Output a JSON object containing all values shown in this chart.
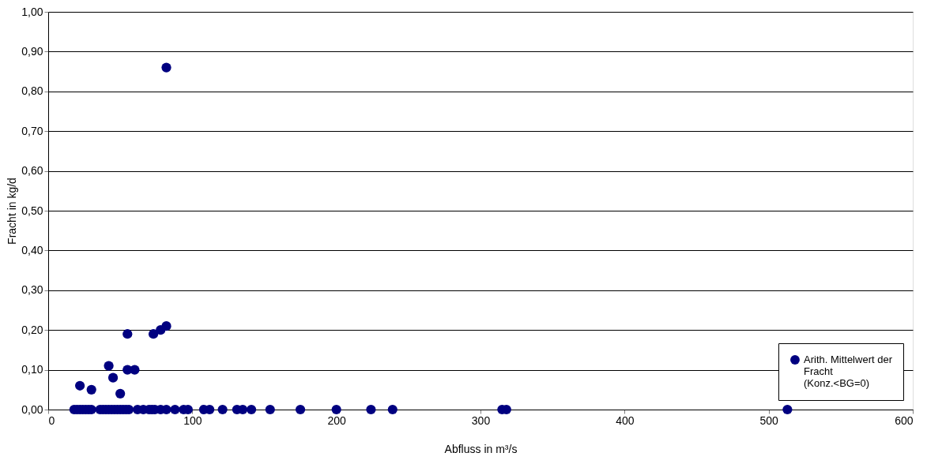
{
  "chart_data": {
    "type": "scatter",
    "xlabel": "Abfluss in m³/s",
    "ylabel": "Fracht in kg/d",
    "series": [
      {
        "name": "Arith. Mittelwert der\nFracht\n(Konz.<BG=0)",
        "color": "#000080",
        "x": [
          82,
          22,
          30,
          42,
          45,
          50,
          55,
          55,
          60,
          73,
          78,
          82,
          18,
          20,
          22,
          24,
          26,
          28,
          30,
          36,
          38,
          40,
          42,
          44,
          46,
          48,
          50,
          52,
          54,
          56,
          62,
          66,
          70,
          72,
          74,
          78,
          82,
          88,
          94,
          97,
          108,
          112,
          121,
          131,
          135,
          141,
          154,
          175,
          200,
          224,
          239,
          315,
          318,
          513
        ],
        "values": [
          0.86,
          0.06,
          0.05,
          0.11,
          0.08,
          0.04,
          0.19,
          0.1,
          0.1,
          0.19,
          0.2,
          0.21,
          0,
          0,
          0,
          0,
          0,
          0,
          0,
          0,
          0,
          0,
          0,
          0,
          0,
          0,
          0,
          0,
          0,
          0,
          0,
          0,
          0,
          0,
          0,
          0,
          0,
          0,
          0,
          0,
          0,
          0,
          0,
          0,
          0,
          0,
          0,
          0,
          0,
          0,
          0,
          0,
          0,
          0
        ]
      }
    ],
    "xlim": [
      0,
      600
    ],
    "xticks": [
      0,
      100,
      200,
      300,
      400,
      500,
      600
    ],
    "ylim": [
      0,
      1
    ],
    "yticks": [
      {
        "value": 0,
        "label": "0,00"
      },
      {
        "value": 0.1,
        "label": "0,10"
      },
      {
        "value": 0.2,
        "label": "0,20"
      },
      {
        "value": 0.3,
        "label": "0,30"
      },
      {
        "value": 0.4,
        "label": "0,40"
      },
      {
        "value": 0.5,
        "label": "0,50"
      },
      {
        "value": 0.6,
        "label": "0,60"
      },
      {
        "value": 0.7,
        "label": "0,70"
      },
      {
        "value": 0.8,
        "label": "0,80"
      },
      {
        "value": 0.9,
        "label": "0,90"
      },
      {
        "value": 1,
        "label": "1,00"
      }
    ],
    "grid": "y",
    "legend": "bottom right",
    "marker": "circle"
  }
}
